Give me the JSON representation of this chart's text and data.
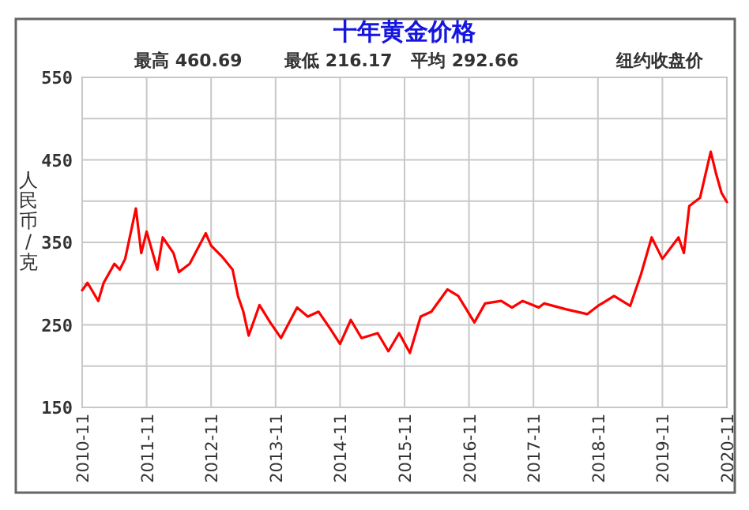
{
  "chart_data": {
    "type": "line",
    "title": "十年黄金价格",
    "annotations": [
      "最高 460.69",
      "最低 216.17",
      "平均 292.66",
      "纽约收盘价"
    ],
    "ylabel": "人民币/克",
    "x": [
      "2010-11",
      "2010-12",
      "2011-02",
      "2011-03",
      "2011-05",
      "2011-06",
      "2011-07",
      "2011-09",
      "2011-10",
      "2011-11",
      "2012-01",
      "2012-02",
      "2012-04",
      "2012-05",
      "2012-07",
      "2012-10",
      "2012-11",
      "2013-01",
      "2013-03",
      "2013-04",
      "2013-05",
      "2013-06",
      "2013-08",
      "2013-10",
      "2013-12",
      "2014-03",
      "2014-05",
      "2014-07",
      "2014-09",
      "2014-11",
      "2015-01",
      "2015-03",
      "2015-06",
      "2015-08",
      "2015-10",
      "2015-12",
      "2016-02",
      "2016-04",
      "2016-07",
      "2016-09",
      "2016-12",
      "2017-02",
      "2017-05",
      "2017-07",
      "2017-09",
      "2017-12",
      "2018-01",
      "2018-05",
      "2018-09",
      "2018-11",
      "2019-02",
      "2019-05",
      "2019-07",
      "2019-09",
      "2019-11",
      "2020-02",
      "2020-03",
      "2020-04",
      "2020-06",
      "2020-08",
      "2020-09",
      "2020-10",
      "2020-11"
    ],
    "series": [
      {
        "color": "#ff0000",
        "values": [
          292,
          301,
          279,
          301,
          324,
          317,
          330,
          391,
          337,
          363,
          317,
          356,
          337,
          314,
          324,
          361,
          346,
          333,
          317,
          285,
          266,
          237,
          274,
          253,
          234,
          271,
          260,
          266,
          247,
          227,
          256,
          234,
          240,
          218,
          240,
          216,
          260,
          266,
          293,
          285,
          253,
          276,
          279,
          271,
          279,
          271,
          276,
          269,
          263,
          273,
          285,
          273,
          311,
          356,
          330,
          356,
          337,
          394,
          404,
          460,
          433,
          410,
          399
        ]
      }
    ],
    "xlim": [
      "2010-11",
      "2020-11"
    ],
    "xticks": [
      "2010-11",
      "2011-11",
      "2012-11",
      "2013-11",
      "2014-11",
      "2015-11",
      "2016-11",
      "2017-11",
      "2018-11",
      "2019-11",
      "2020-11"
    ],
    "ylim": [
      150,
      550
    ],
    "yticks": [
      150,
      {
        "value": 200,
        "label": null
      },
      250,
      {
        "value": 300,
        "label": null
      },
      350,
      {
        "value": 400,
        "label": null
      },
      450,
      {
        "value": 500,
        "label": null
      },
      550
    ],
    "grid": true
  }
}
